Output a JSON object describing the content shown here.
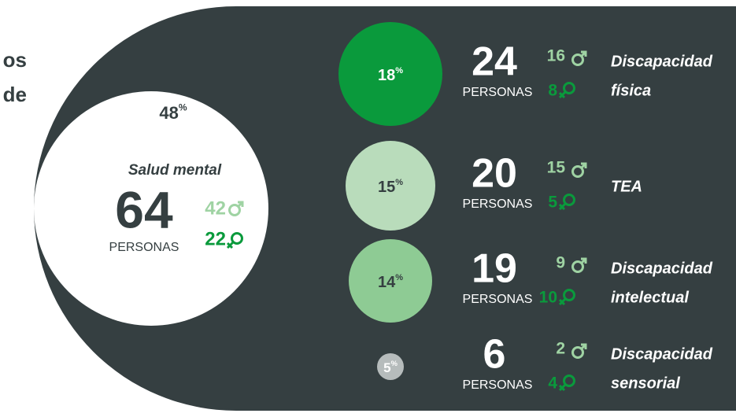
{
  "header": {
    "title_fragments": [
      "os",
      "de"
    ]
  },
  "main": {
    "percent": 48,
    "unit": "%",
    "label": "Salud mental",
    "total": 64,
    "people": "PERSONAS",
    "male": 42,
    "female": 22
  },
  "groups": [
    {
      "percent": 18,
      "unit": "%",
      "total": 24,
      "people": "PERSONAS",
      "male": 16,
      "female": 8,
      "label": [
        "Discapacidad",
        "física"
      ]
    },
    {
      "percent": 15,
      "unit": "%",
      "total": 20,
      "people": "PERSONAS",
      "male": 15,
      "female": 5,
      "label": [
        "TEA"
      ]
    },
    {
      "percent": 14,
      "unit": "%",
      "total": 19,
      "people": "PERSONAS",
      "male": 9,
      "female": 10,
      "label": [
        "Discapacidad",
        "intelectual"
      ]
    },
    {
      "percent": 5,
      "unit": "%",
      "total": 6,
      "people": "PERSONAS",
      "male": 2,
      "female": 4,
      "label": [
        "Discapacidad",
        "sensorial"
      ]
    }
  ]
}
